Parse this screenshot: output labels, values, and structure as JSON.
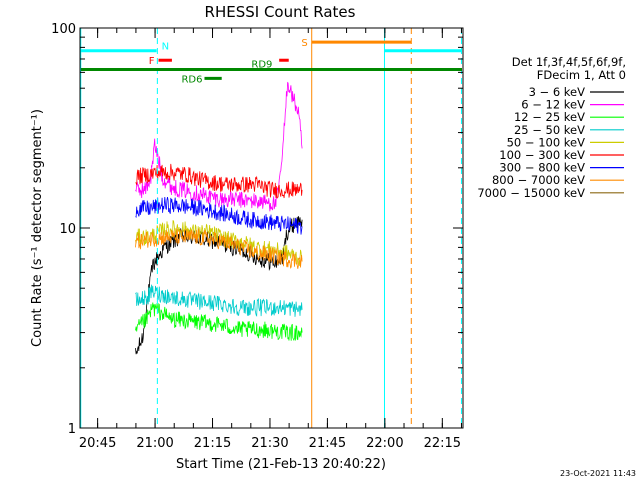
{
  "chart_data": {
    "type": "line",
    "title": "RHESSI Count Rates",
    "xlabel": "Start Time (21-Feb-13 20:40:22)",
    "ylabel": "Count Rate (s⁻¹ detector segment⁻¹)",
    "yscale": "log",
    "ylim": [
      1,
      100
    ],
    "xlim_minutes": [
      0,
      100
    ],
    "x_ticks": [
      {
        "label": "20:45",
        "min": 4.6
      },
      {
        "label": "21:00",
        "min": 19.6
      },
      {
        "label": "21:15",
        "min": 34.6
      },
      {
        "label": "21:30",
        "min": 49.6
      },
      {
        "label": "21:45",
        "min": 64.6
      },
      {
        "label": "22:00",
        "min": 79.6
      },
      {
        "label": "22:15",
        "min": 94.6
      }
    ],
    "y_ticks": [
      {
        "label": "1",
        "value": 1
      },
      {
        "label": "10",
        "value": 10
      },
      {
        "label": "100",
        "value": 100
      }
    ],
    "legend_header": [
      "Det 1f,3f,4f,5f,6f,9f,",
      "FDecim 1, Att 0"
    ],
    "legend_placement": "right",
    "series": [
      {
        "name": "3 − 6 keV",
        "color": "#000000",
        "segments": [
          [
            [
              14.5,
              2.3
            ],
            [
              16.5,
              2.9
            ],
            [
              17.5,
              4.2
            ],
            [
              19,
              6.5
            ],
            [
              22,
              8.0
            ],
            [
              26,
              9.0
            ],
            [
              30,
              9.0
            ],
            [
              36,
              8.5
            ],
            [
              40,
              8.0
            ],
            [
              44,
              7.5
            ],
            [
              47,
              7.0
            ],
            [
              51,
              6.7
            ],
            [
              53,
              7.2
            ],
            [
              54,
              9.5
            ],
            [
              56,
              10.5
            ],
            [
              58,
              11.0
            ]
          ]
        ]
      },
      {
        "name": "6 − 12 keV",
        "color": "#ff00ff",
        "segments": [
          [
            [
              14.5,
              15.5
            ],
            [
              17,
              15.5
            ],
            [
              18.5,
              18.0
            ],
            [
              19.5,
              26.0
            ],
            [
              20.5,
              22.0
            ],
            [
              21.5,
              18.0
            ],
            [
              24,
              16.0
            ],
            [
              30,
              15.0
            ],
            [
              36,
              14.0
            ],
            [
              42,
              13.8
            ],
            [
              48,
              13.5
            ],
            [
              51,
              13.2
            ],
            [
              52,
              16.0
            ],
            [
              53,
              25.0
            ],
            [
              54.2,
              55.0
            ],
            [
              55.5,
              45.0
            ],
            [
              57,
              38.0
            ],
            [
              58,
              25.0
            ]
          ]
        ]
      },
      {
        "name": "12 − 25 keV",
        "color": "#00ff00",
        "segments": [
          [
            [
              14.5,
              3.0
            ],
            [
              16,
              3.3
            ],
            [
              17.5,
              3.5
            ],
            [
              19,
              4.0
            ],
            [
              24,
              3.5
            ],
            [
              30,
              3.4
            ],
            [
              36,
              3.3
            ],
            [
              42,
              3.1
            ],
            [
              48,
              3.1
            ],
            [
              54,
              3.0
            ],
            [
              58,
              3.0
            ]
          ]
        ]
      },
      {
        "name": "25 − 50 keV",
        "color": "#00cccc",
        "segments": [
          [
            [
              14.5,
              4.3
            ],
            [
              16,
              4.4
            ],
            [
              17.5,
              4.5
            ],
            [
              19,
              4.8
            ],
            [
              24,
              4.5
            ],
            [
              30,
              4.3
            ],
            [
              36,
              4.2
            ],
            [
              42,
              4.0
            ],
            [
              48,
              4.0
            ],
            [
              54,
              4.0
            ],
            [
              58,
              3.9
            ]
          ]
        ]
      },
      {
        "name": "50 − 100 keV",
        "color": "#cccc00",
        "segments": [
          [
            [
              14.5,
              9.0
            ],
            [
              18,
              9.0
            ],
            [
              22,
              9.8
            ],
            [
              26,
              10.0
            ],
            [
              30,
              9.5
            ],
            [
              34,
              9.5
            ],
            [
              38,
              8.8
            ],
            [
              42,
              8.5
            ],
            [
              46,
              8.0
            ],
            [
              50,
              7.8
            ],
            [
              54,
              7.5
            ],
            [
              58,
              7.0
            ]
          ]
        ]
      },
      {
        "name": "100 − 300 keV",
        "color": "#ff0000",
        "segments": [
          [
            [
              14.5,
              18.0
            ],
            [
              18,
              18.5
            ],
            [
              20,
              19.0
            ],
            [
              24,
              19.0
            ],
            [
              28,
              18.5
            ],
            [
              31,
              17.5
            ],
            [
              34,
              17.0
            ],
            [
              38,
              16.5
            ],
            [
              42,
              16.5
            ],
            [
              46,
              16.5
            ],
            [
              50,
              15.5
            ],
            [
              54,
              15.5
            ],
            [
              58,
              15.5
            ]
          ]
        ]
      },
      {
        "name": "300 − 800 keV",
        "color": "#0000ff",
        "segments": [
          [
            [
              14.5,
              12.5
            ],
            [
              18,
              12.5
            ],
            [
              21,
              13.0
            ],
            [
              24,
              13.0
            ],
            [
              28,
              12.8
            ],
            [
              32,
              12.5
            ],
            [
              36,
              12.0
            ],
            [
              40,
              11.5
            ],
            [
              44,
              11.0
            ],
            [
              48,
              10.8
            ],
            [
              52,
              10.5
            ],
            [
              58,
              10.2
            ]
          ]
        ]
      },
      {
        "name": "800 − 7000 keV",
        "color": "#ff8c00",
        "segments": [
          [
            [
              14.5,
              8.5
            ],
            [
              18,
              8.8
            ],
            [
              22,
              9.0
            ],
            [
              26,
              9.0
            ],
            [
              30,
              9.0
            ],
            [
              34,
              8.8
            ],
            [
              38,
              8.5
            ],
            [
              42,
              8.0
            ],
            [
              46,
              7.5
            ],
            [
              50,
              7.3
            ],
            [
              54,
              7.0
            ],
            [
              58,
              6.8
            ]
          ]
        ]
      },
      {
        "name": "7000 − 15000 keV",
        "color": "#8b6914",
        "segments": []
      }
    ],
    "attenuator_bars": [
      {
        "color": "#00ffff",
        "label": "N",
        "y": 77,
        "from_min": 0,
        "to_min": 20.0
      },
      {
        "color": "#00ffff",
        "label": "",
        "y": 77,
        "from_min": 79.5,
        "to_min": 100
      },
      {
        "color": "#ff0000",
        "label": "F",
        "y": 69,
        "from_min": 20.5,
        "to_min": 24.0
      },
      {
        "color": "#ff0000",
        "label": "",
        "y": 69,
        "from_min": 52.0,
        "to_min": 54.5
      },
      {
        "color": "#ff8800",
        "label": "S",
        "y": 85,
        "from_min": 60.5,
        "to_min": 86.5
      },
      {
        "color": "#008800",
        "label": "RD9",
        "y": 62,
        "from_min": 0,
        "to_min": 100
      },
      {
        "color": "#008800",
        "label": "RD6",
        "y": 56,
        "from_min": 32.5,
        "to_min": 37.0
      }
    ],
    "vertical_lines": [
      {
        "color": "#00ffff",
        "style": "solid",
        "min": 0.2
      },
      {
        "color": "#00ffff",
        "style": "dashed",
        "min": 20.2
      },
      {
        "color": "#ff8800",
        "style": "solid",
        "min": 60.5
      },
      {
        "color": "#00ffff",
        "style": "solid",
        "min": 79.5
      },
      {
        "color": "#ff8800",
        "style": "dashed",
        "min": 86.5
      },
      {
        "color": "#00ffff",
        "style": "dashed",
        "min": 99.6
      }
    ],
    "timestamp": "23-Oct-2021 11:43"
  }
}
